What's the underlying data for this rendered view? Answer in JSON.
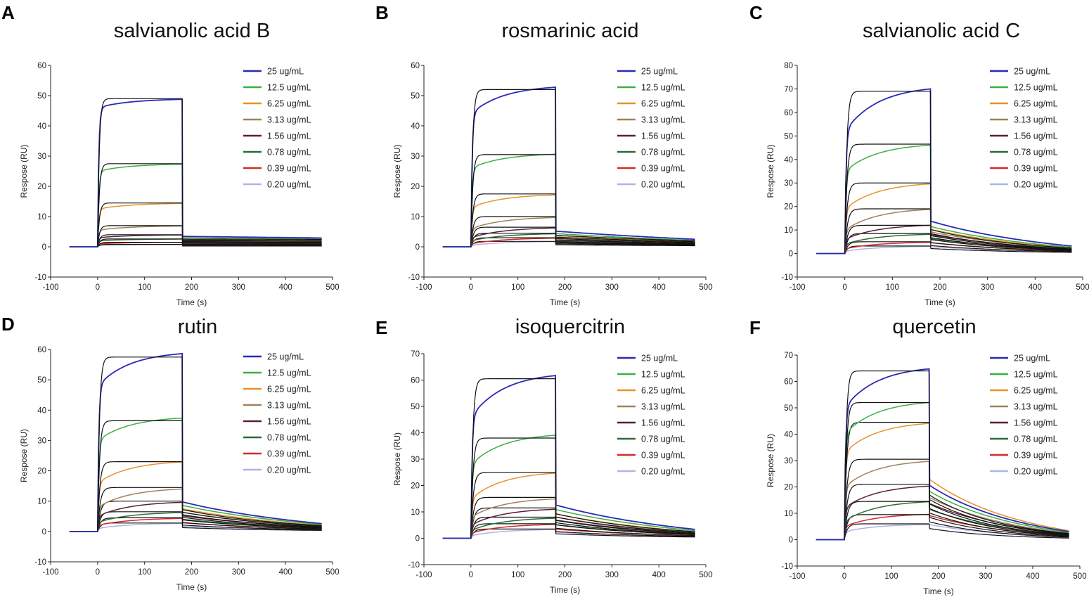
{
  "chart_data": [
    {
      "panel": "A",
      "type": "line",
      "title": "salvianolic acid B",
      "xlabel": "Time (s)",
      "ylabel": "Respose  (RU)",
      "xlim": [
        -100,
        500
      ],
      "ylim": [
        -10,
        60
      ],
      "xticks": [
        -100,
        0,
        100,
        200,
        300,
        400,
        500
      ],
      "yticks": [
        -10,
        0,
        10,
        20,
        30,
        40,
        50,
        60
      ],
      "association_end": 180,
      "dissociation_end": 480,
      "series": [
        {
          "name": "25 ug/mL",
          "color": "#2a2ab8",
          "jump": 46,
          "plateau": 49,
          "fit_plateau": 49,
          "fast": 0.93,
          "k_off": 0.0001,
          "dissociation_start": 3.0
        },
        {
          "name": "12.5 ug/mL",
          "color": "#3cb043",
          "jump": 25,
          "plateau": 27.5,
          "fit_plateau": 27.5,
          "fast": 0.9,
          "k_off": 0.0001,
          "dissociation_start": 2.6
        },
        {
          "name": "6.25 ug/mL",
          "color": "#e8922a",
          "jump": 12.5,
          "plateau": 14.5,
          "fit_plateau": 14.5,
          "fast": 0.86,
          "k_off": 0.0001,
          "dissociation_start": 2.2
        },
        {
          "name": "3.13 ug/mL",
          "color": "#a0825a",
          "jump": 5.5,
          "plateau": 7,
          "fit_plateau": 7,
          "fast": 0.8,
          "k_off": 0.0001,
          "dissociation_start": 1.8
        },
        {
          "name": "1.56 ug/mL",
          "color": "#5a1f3a",
          "jump": 3,
          "plateau": 4,
          "fit_plateau": 4,
          "fast": 0.75,
          "k_off": 0.0001,
          "dissociation_start": 1.4
        },
        {
          "name": "0.78 ug/mL",
          "color": "#2e6b36",
          "jump": 2,
          "plateau": 2.6,
          "fit_plateau": 2.6,
          "fast": 0.75,
          "k_off": 0.0001,
          "dissociation_start": 1.0
        },
        {
          "name": "0.39 ug/mL",
          "color": "#d62a2a",
          "jump": 1,
          "plateau": 1.5,
          "fit_plateau": 1.5,
          "fast": 0.7,
          "k_off": 0.0001,
          "dissociation_start": 0.6
        },
        {
          "name": "0.20 ug/mL",
          "color": "#aeb4e6",
          "jump": 0.5,
          "plateau": 0.8,
          "fit_plateau": 0.8,
          "fast": 0.7,
          "k_off": 0.0001,
          "dissociation_start": 0.3
        }
      ]
    },
    {
      "panel": "B",
      "type": "line",
      "title": "rosmarinic acid",
      "xlabel": "Time (s)",
      "ylabel": "Respose  (RU)",
      "xlim": [
        -100,
        500
      ],
      "ylim": [
        -10,
        60
      ],
      "xticks": [
        -100,
        0,
        100,
        200,
        300,
        400,
        500
      ],
      "yticks": [
        -10,
        0,
        10,
        20,
        30,
        40,
        50,
        60
      ],
      "association_end": 180,
      "dissociation_end": 480,
      "series": [
        {
          "name": "25 ug/mL",
          "color": "#2a2ab8",
          "jump": 44,
          "plateau": 53.5,
          "fit_plateau": 52,
          "fast": 0.88,
          "k_off": 0.002,
          "dissociation_start": 4.5
        },
        {
          "name": "12.5 ug/mL",
          "color": "#3cb043",
          "jump": 26,
          "plateau": 31,
          "fit_plateau": 30.5,
          "fast": 0.86,
          "k_off": 0.002,
          "dissociation_start": 3.8
        },
        {
          "name": "6.25 ug/mL",
          "color": "#e8922a",
          "jump": 13,
          "plateau": 17.5,
          "fit_plateau": 17.5,
          "fast": 0.8,
          "k_off": 0.002,
          "dissociation_start": 3.2
        },
        {
          "name": "3.13 ug/mL",
          "color": "#a0825a",
          "jump": 6,
          "plateau": 10,
          "fit_plateau": 10,
          "fast": 0.7,
          "k_off": 0.002,
          "dissociation_start": 2.6
        },
        {
          "name": "1.56 ug/mL",
          "color": "#5a1f3a",
          "jump": 3,
          "plateau": 6.5,
          "fit_plateau": 6.5,
          "fast": 0.6,
          "k_off": 0.002,
          "dissociation_start": 2.0
        },
        {
          "name": "0.78 ug/mL",
          "color": "#2e6b36",
          "jump": 2,
          "plateau": 4.5,
          "fit_plateau": 4.5,
          "fast": 0.55,
          "k_off": 0.002,
          "dissociation_start": 1.6
        },
        {
          "name": "0.39 ug/mL",
          "color": "#d62a2a",
          "jump": 1,
          "plateau": 3,
          "fit_plateau": 3,
          "fast": 0.5,
          "k_off": 0.002,
          "dissociation_start": 1.2
        },
        {
          "name": "0.20 ug/mL",
          "color": "#aeb4e6",
          "jump": 0.5,
          "plateau": 1.8,
          "fit_plateau": 1.8,
          "fast": 0.5,
          "k_off": 0.002,
          "dissociation_start": 0.8
        }
      ]
    },
    {
      "panel": "C",
      "type": "line",
      "title": "salvianolic acid C",
      "xlabel": "Time (s)",
      "ylabel": "Respose  (RU)",
      "xlim": [
        -100,
        500
      ],
      "ylim": [
        -10,
        80
      ],
      "xticks": [
        -100,
        0,
        100,
        200,
        300,
        400,
        500
      ],
      "yticks": [
        -10,
        0,
        10,
        20,
        30,
        40,
        50,
        60,
        70,
        80
      ],
      "association_end": 180,
      "dissociation_end": 480,
      "series": [
        {
          "name": "25 ug/mL",
          "color": "#2a2ab8",
          "jump": 52,
          "plateau": 71.5,
          "fit_plateau": 69,
          "fast": 0.82,
          "k_off": 0.0045,
          "dissociation_start": 12
        },
        {
          "name": "12.5 ug/mL",
          "color": "#3cb043",
          "jump": 35,
          "plateau": 47,
          "fit_plateau": 46.5,
          "fast": 0.78,
          "k_off": 0.0045,
          "dissociation_start": 10
        },
        {
          "name": "6.25 ug/mL",
          "color": "#e8922a",
          "jump": 19,
          "plateau": 30.5,
          "fit_plateau": 30,
          "fast": 0.7,
          "k_off": 0.0045,
          "dissociation_start": 9
        },
        {
          "name": "3.13 ug/mL",
          "color": "#a0825a",
          "jump": 10,
          "plateau": 19.5,
          "fit_plateau": 19,
          "fast": 0.6,
          "k_off": 0.0045,
          "dissociation_start": 8
        },
        {
          "name": "1.56 ug/mL",
          "color": "#5a1f3a",
          "jump": 6,
          "plateau": 12.5,
          "fit_plateau": 12,
          "fast": 0.5,
          "k_off": 0.0045,
          "dissociation_start": 7
        },
        {
          "name": "0.78 ug/mL",
          "color": "#2e6b36",
          "jump": 4,
          "plateau": 8.5,
          "fit_plateau": 8.5,
          "fast": 0.5,
          "k_off": 0.0045,
          "dissociation_start": 5.5
        },
        {
          "name": "0.39 ug/mL",
          "color": "#d62a2a",
          "jump": 2,
          "plateau": 5,
          "fit_plateau": 5,
          "fast": 0.45,
          "k_off": 0.0045,
          "dissociation_start": 4
        },
        {
          "name": "0.20 ug/mL",
          "color": "#aeb4e6",
          "jump": 1,
          "plateau": 3.2,
          "fit_plateau": 3.2,
          "fast": 0.45,
          "k_off": 0.0045,
          "dissociation_start": 2.5
        }
      ]
    },
    {
      "panel": "D",
      "type": "line",
      "title": "rutin",
      "xlabel": "Time (s)",
      "ylabel": "Respose  (RU)",
      "xlim": [
        -100,
        500
      ],
      "ylim": [
        -10,
        60
      ],
      "xticks": [
        -100,
        0,
        100,
        200,
        300,
        400,
        500
      ],
      "yticks": [
        -10,
        0,
        10,
        20,
        30,
        40,
        50,
        60
      ],
      "association_end": 180,
      "dissociation_end": 480,
      "series": [
        {
          "name": "25 ug/mL",
          "color": "#2a2ab8",
          "jump": 48,
          "plateau": 59.5,
          "fit_plateau": 57.5,
          "fast": 0.85,
          "k_off": 0.004,
          "dissociation_start": 8.5
        },
        {
          "name": "12.5 ug/mL",
          "color": "#3cb043",
          "jump": 30,
          "plateau": 38,
          "fit_plateau": 36.5,
          "fast": 0.82,
          "k_off": 0.004,
          "dissociation_start": 7.5
        },
        {
          "name": "6.25 ug/mL",
          "color": "#e8922a",
          "jump": 16,
          "plateau": 23.5,
          "fit_plateau": 23,
          "fast": 0.72,
          "k_off": 0.004,
          "dissociation_start": 6.5
        },
        {
          "name": "3.13 ug/mL",
          "color": "#a0825a",
          "jump": 8,
          "plateau": 14.5,
          "fit_plateau": 14.5,
          "fast": 0.6,
          "k_off": 0.004,
          "dissociation_start": 5.5
        },
        {
          "name": "1.56 ug/mL",
          "color": "#5a1f3a",
          "jump": 5,
          "plateau": 10,
          "fit_plateau": 10,
          "fast": 0.5,
          "k_off": 0.004,
          "dissociation_start": 4.5
        },
        {
          "name": "0.78 ug/mL",
          "color": "#2e6b36",
          "jump": 3,
          "plateau": 6.5,
          "fit_plateau": 6.5,
          "fast": 0.5,
          "k_off": 0.004,
          "dissociation_start": 3.5
        },
        {
          "name": "0.39 ug/mL",
          "color": "#d62a2a",
          "jump": 2,
          "plateau": 4.5,
          "fit_plateau": 4.5,
          "fast": 0.45,
          "k_off": 0.004,
          "dissociation_start": 2.5
        },
        {
          "name": "0.20 ug/mL",
          "color": "#aeb4e6",
          "jump": 1,
          "plateau": 2.8,
          "fit_plateau": 2.8,
          "fast": 0.45,
          "k_off": 0.004,
          "dissociation_start": 1.5
        }
      ]
    },
    {
      "panel": "E",
      "type": "line",
      "title": "isoquercitrin",
      "xlabel": "Time (s)",
      "ylabel": "Respose  (RU)",
      "xlim": [
        -100,
        500
      ],
      "ylim": [
        -10,
        70
      ],
      "xticks": [
        -100,
        0,
        100,
        200,
        300,
        400,
        500
      ],
      "yticks": [
        -10,
        0,
        10,
        20,
        30,
        40,
        50,
        60,
        70
      ],
      "association_end": 180,
      "dissociation_end": 480,
      "series": [
        {
          "name": "25 ug/mL",
          "color": "#2a2ab8",
          "jump": 46,
          "plateau": 63,
          "fit_plateau": 60.5,
          "fast": 0.82,
          "k_off": 0.004,
          "dissociation_start": 11
        },
        {
          "name": "12.5 ug/mL",
          "color": "#3cb043",
          "jump": 28,
          "plateau": 40,
          "fit_plateau": 38,
          "fast": 0.78,
          "k_off": 0.004,
          "dissociation_start": 9.5
        },
        {
          "name": "6.25 ug/mL",
          "color": "#e8922a",
          "jump": 15,
          "plateau": 25.5,
          "fit_plateau": 25,
          "fast": 0.68,
          "k_off": 0.004,
          "dissociation_start": 8
        },
        {
          "name": "3.13 ug/mL",
          "color": "#a0825a",
          "jump": 8,
          "plateau": 15.5,
          "fit_plateau": 15.5,
          "fast": 0.58,
          "k_off": 0.004,
          "dissociation_start": 7
        },
        {
          "name": "1.56 ug/mL",
          "color": "#5a1f3a",
          "jump": 5,
          "plateau": 11.5,
          "fit_plateau": 11.5,
          "fast": 0.5,
          "k_off": 0.004,
          "dissociation_start": 6
        },
        {
          "name": "0.78 ug/mL",
          "color": "#2e6b36",
          "jump": 3,
          "plateau": 8,
          "fit_plateau": 8,
          "fast": 0.48,
          "k_off": 0.004,
          "dissociation_start": 4.5
        },
        {
          "name": "0.39 ug/mL",
          "color": "#d62a2a",
          "jump": 2,
          "plateau": 5.5,
          "fit_plateau": 5.5,
          "fast": 0.45,
          "k_off": 0.004,
          "dissociation_start": 3
        },
        {
          "name": "0.20 ug/mL",
          "color": "#aeb4e6",
          "jump": 1,
          "plateau": 3.5,
          "fit_plateau": 3.5,
          "fast": 0.45,
          "k_off": 0.004,
          "dissociation_start": 2
        }
      ]
    },
    {
      "panel": "F",
      "type": "line",
      "title": "quercetin",
      "xlabel": "Time (s)",
      "ylabel": "Respose  (RU)",
      "xlim": [
        -100,
        500
      ],
      "ylim": [
        -10,
        70
      ],
      "xticks": [
        -100,
        0,
        100,
        200,
        300,
        400,
        500
      ],
      "yticks": [
        -10,
        0,
        10,
        20,
        30,
        40,
        50,
        60,
        70
      ],
      "association_end": 180,
      "dissociation_end": 480,
      "series": [
        {
          "name": "25 ug/mL",
          "color": "#2a2ab8",
          "jump": 50,
          "plateau": 66,
          "fit_plateau": 64,
          "fast": 0.85,
          "k_off": 0.006,
          "dissociation_start": 18
        },
        {
          "name": "12.5 ug/mL",
          "color": "#3cb043",
          "jump": 40,
          "plateau": 53,
          "fit_plateau": 52,
          "fast": 0.8,
          "k_off": 0.006,
          "dissociation_start": 16
        },
        {
          "name": "6.25 ug/mL",
          "color": "#e8922a",
          "jump": 33,
          "plateau": 45,
          "fit_plateau": 44.5,
          "fast": 0.75,
          "k_off": 0.006,
          "dissociation_start": 20
        },
        {
          "name": "3.13 ug/mL",
          "color": "#a0825a",
          "jump": 20,
          "plateau": 30.5,
          "fit_plateau": 30.5,
          "fast": 0.62,
          "k_off": 0.006,
          "dissociation_start": 14
        },
        {
          "name": "1.56 ug/mL",
          "color": "#5a1f3a",
          "jump": 12,
          "plateau": 21,
          "fit_plateau": 21,
          "fast": 0.55,
          "k_off": 0.006,
          "dissociation_start": 12
        },
        {
          "name": "0.78 ug/mL",
          "color": "#2e6b36",
          "jump": 7,
          "plateau": 15,
          "fit_plateau": 14.5,
          "fast": 0.5,
          "k_off": 0.006,
          "dissociation_start": 10
        },
        {
          "name": "0.39 ug/mL",
          "color": "#d62a2a",
          "jump": 5,
          "plateau": 10,
          "fit_plateau": 9.5,
          "fast": 0.48,
          "k_off": 0.006,
          "dissociation_start": 8
        },
        {
          "name": "0.20 ug/mL",
          "color": "#aeb4e6",
          "jump": 3,
          "plateau": 6,
          "fit_plateau": 6,
          "fast": 0.45,
          "k_off": 0.006,
          "dissociation_start": 5
        }
      ]
    }
  ]
}
